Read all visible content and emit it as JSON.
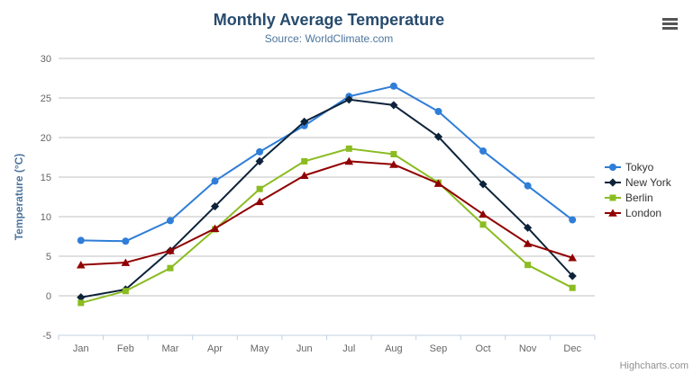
{
  "title": "Monthly Average Temperature",
  "subtitle": "Source: WorldClimate.com",
  "credits": "Highcharts.com",
  "colors": {
    "title": "#274b6d",
    "subtitle": "#4d759e",
    "axis_title": "#4d759e",
    "tick_label": "#666666",
    "gridline": "#c0c0c0",
    "axis_line": "#c0d0e0",
    "legend_text": "#333333",
    "credits_text": "#909090"
  },
  "chart_data": {
    "type": "line",
    "title": "Monthly Average Temperature",
    "subtitle": "Source: WorldClimate.com",
    "xlabel": "",
    "ylabel": "Temperature (°C)",
    "ylim": [
      -5,
      30
    ],
    "ytick_step": 5,
    "grid": true,
    "legend_position": "right",
    "categories": [
      "Jan",
      "Feb",
      "Mar",
      "Apr",
      "May",
      "Jun",
      "Jul",
      "Aug",
      "Sep",
      "Oct",
      "Nov",
      "Dec"
    ],
    "series": [
      {
        "name": "Tokyo",
        "color": "#2f7ed8",
        "marker": "circle",
        "values": [
          7.0,
          6.9,
          9.5,
          14.5,
          18.2,
          21.5,
          25.2,
          26.5,
          23.3,
          18.3,
          13.9,
          9.6
        ]
      },
      {
        "name": "New York",
        "color": "#0d233a",
        "marker": "diamond",
        "values": [
          -0.2,
          0.8,
          5.7,
          11.3,
          17.0,
          22.0,
          24.8,
          24.1,
          20.1,
          14.1,
          8.6,
          2.5
        ]
      },
      {
        "name": "Berlin",
        "color": "#8bbc21",
        "marker": "square",
        "values": [
          -0.9,
          0.6,
          3.5,
          8.4,
          13.5,
          17.0,
          18.6,
          17.9,
          14.3,
          9.0,
          3.9,
          1.0
        ]
      },
      {
        "name": "London",
        "color": "#910000",
        "marker": "triangle",
        "values": [
          3.9,
          4.2,
          5.7,
          8.5,
          11.9,
          15.2,
          17.0,
          16.6,
          14.2,
          10.3,
          6.6,
          4.8
        ]
      }
    ]
  }
}
